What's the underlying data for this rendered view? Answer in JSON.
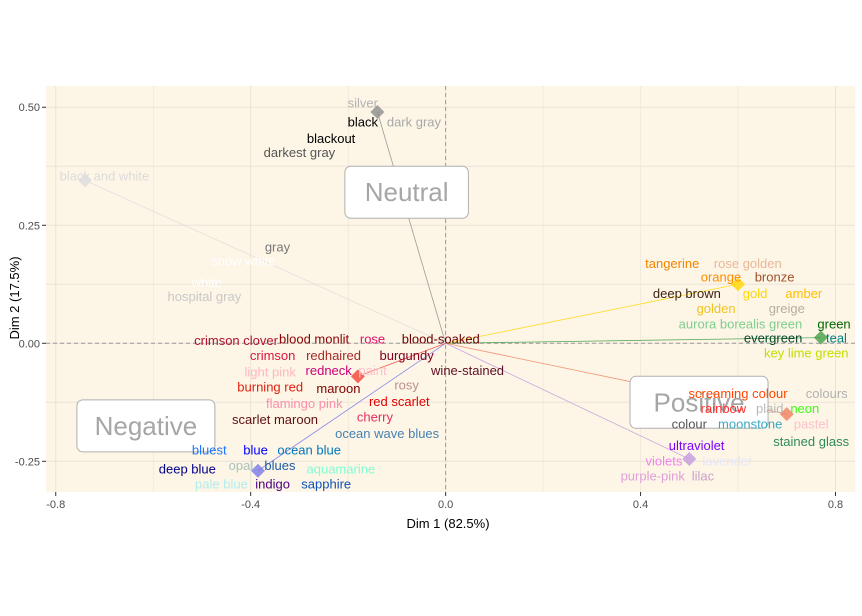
{
  "chart_data": {
    "type": "scatter",
    "xlabel": "Dim 1 (82.5%)",
    "ylabel": "Dim 2 (17.5%)",
    "xlim": [
      -0.82,
      0.84
    ],
    "ylim": [
      -0.315,
      0.545
    ],
    "x_ticks": [
      -0.8,
      -0.4,
      0.0,
      0.4,
      0.8
    ],
    "x_tick_labels": [
      "-0.8",
      "-0.4",
      "0.0",
      "0.4",
      "0.8"
    ],
    "y_ticks": [
      -0.25,
      0.0,
      0.25,
      0.5
    ],
    "y_tick_labels": [
      "-0.25",
      "0.00",
      "0.25",
      "0.50"
    ],
    "grid": true,
    "panel_background": "#fdf5e6",
    "categories": [
      {
        "label": "Neutral",
        "x": -0.08,
        "y": 0.32
      },
      {
        "label": "Negative",
        "x": -0.615,
        "y": -0.175
      },
      {
        "label": "Positive",
        "x": 0.52,
        "y": -0.125
      }
    ],
    "points": [
      {
        "x": -0.14,
        "y": 0.49,
        "color": "#8c8c8c"
      },
      {
        "x": -0.74,
        "y": 0.345,
        "color": "#dddddd"
      },
      {
        "x": 0.6,
        "y": 0.125,
        "color": "#ffd700"
      },
      {
        "x": 0.77,
        "y": 0.012,
        "color": "#43a047"
      },
      {
        "x": 0.7,
        "y": -0.15,
        "color": "#f08060"
      },
      {
        "x": 0.5,
        "y": -0.245,
        "color": "#c39be0"
      },
      {
        "x": -0.18,
        "y": -0.07,
        "color": "#f44336"
      },
      {
        "x": -0.385,
        "y": -0.27,
        "color": "#7878e8"
      }
    ],
    "words": [
      {
        "text": "silver",
        "x": -0.17,
        "y": 0.51,
        "color": "#b3b3b3"
      },
      {
        "text": "black",
        "x": -0.17,
        "y": 0.47,
        "color": "#000000"
      },
      {
        "text": "dark gray",
        "x": -0.065,
        "y": 0.47,
        "color": "#a9a9a9"
      },
      {
        "text": "blackout",
        "x": -0.235,
        "y": 0.435,
        "color": "#000000"
      },
      {
        "text": "darkest gray",
        "x": -0.3,
        "y": 0.405,
        "color": "#555555"
      },
      {
        "text": "black and white",
        "x": -0.7,
        "y": 0.355,
        "color": "#dcdcdc"
      },
      {
        "text": "gray",
        "x": -0.345,
        "y": 0.205,
        "color": "#777777"
      },
      {
        "text": "snow white",
        "x": -0.415,
        "y": 0.175,
        "color": "#ffffff"
      },
      {
        "text": "white",
        "x": -0.49,
        "y": 0.13,
        "color": "#ffffff"
      },
      {
        "text": "hospital gray",
        "x": -0.495,
        "y": 0.1,
        "color": "#c8c8c8"
      },
      {
        "text": "tangerine",
        "x": 0.465,
        "y": 0.17,
        "color": "#f28500"
      },
      {
        "text": "rose golden",
        "x": 0.62,
        "y": 0.17,
        "color": "#e8b898"
      },
      {
        "text": "orange",
        "x": 0.565,
        "y": 0.142,
        "color": "#ff8c00"
      },
      {
        "text": "bronze",
        "x": 0.675,
        "y": 0.142,
        "color": "#a0522d"
      },
      {
        "text": "deep brown",
        "x": 0.495,
        "y": 0.107,
        "color": "#3d2314"
      },
      {
        "text": "gold",
        "x": 0.635,
        "y": 0.107,
        "color": "#ffd700"
      },
      {
        "text": "amber",
        "x": 0.735,
        "y": 0.107,
        "color": "#ffbf00"
      },
      {
        "text": "golden",
        "x": 0.555,
        "y": 0.075,
        "color": "#f0c420"
      },
      {
        "text": "greige",
        "x": 0.7,
        "y": 0.075,
        "color": "#b5ad9e"
      },
      {
        "text": "aurora borealis green",
        "x": 0.605,
        "y": 0.042,
        "color": "#7ecf8e"
      },
      {
        "text": "green",
        "x": 0.797,
        "y": 0.042,
        "color": "#006400"
      },
      {
        "text": "evergreen",
        "x": 0.672,
        "y": 0.012,
        "color": "#05472a"
      },
      {
        "text": "teal",
        "x": 0.802,
        "y": 0.012,
        "color": "#008080"
      },
      {
        "text": "key lime green",
        "x": 0.74,
        "y": -0.02,
        "color": "#c0e000"
      },
      {
        "text": "screaming colour",
        "x": 0.6,
        "y": -0.105,
        "color": "#ff4500"
      },
      {
        "text": "colours",
        "x": 0.782,
        "y": -0.105,
        "color": "#b0b0b0"
      },
      {
        "text": "rainbow",
        "x": 0.57,
        "y": -0.137,
        "color": "#ff3030"
      },
      {
        "text": "plaid",
        "x": 0.665,
        "y": -0.137,
        "color": "#b8b8b8"
      },
      {
        "text": "neon",
        "x": 0.737,
        "y": -0.137,
        "color": "#39ff14"
      },
      {
        "text": "colour",
        "x": 0.5,
        "y": -0.17,
        "color": "#555555"
      },
      {
        "text": "moonstone",
        "x": 0.625,
        "y": -0.17,
        "color": "#3aa8c1"
      },
      {
        "text": "pastel",
        "x": 0.75,
        "y": -0.17,
        "color": "#ffc0cb"
      },
      {
        "text": "stained glass",
        "x": 0.75,
        "y": -0.207,
        "color": "#2e8b57"
      },
      {
        "text": "ultraviolet",
        "x": 0.515,
        "y": -0.215,
        "color": "#7f00ff"
      },
      {
        "text": "violets",
        "x": 0.448,
        "y": -0.248,
        "color": "#ee82ee"
      },
      {
        "text": "lavender",
        "x": 0.578,
        "y": -0.248,
        "color": "#e6e6fa"
      },
      {
        "text": "purple-pink",
        "x": 0.425,
        "y": -0.28,
        "color": "#e0a0d8"
      },
      {
        "text": "lilac",
        "x": 0.528,
        "y": -0.28,
        "color": "#c8a2c8"
      },
      {
        "text": "crimson clover",
        "x": -0.43,
        "y": 0.007,
        "color": "#b01030"
      },
      {
        "text": "blood monlit",
        "x": -0.27,
        "y": 0.01,
        "color": "#8a0303"
      },
      {
        "text": "rose",
        "x": -0.15,
        "y": 0.01,
        "color": "#e0116f"
      },
      {
        "text": "blood-soaked",
        "x": -0.01,
        "y": 0.01,
        "color": "#6b0000"
      },
      {
        "text": "crimson",
        "x": -0.355,
        "y": -0.025,
        "color": "#dc143c"
      },
      {
        "text": "redhaired",
        "x": -0.23,
        "y": -0.025,
        "color": "#a52a2a"
      },
      {
        "text": "burgundy",
        "x": -0.08,
        "y": -0.025,
        "color": "#800020"
      },
      {
        "text": "light pink",
        "x": -0.36,
        "y": -0.06,
        "color": "#ffb6c1"
      },
      {
        "text": "redneck",
        "x": -0.24,
        "y": -0.057,
        "color": "#cc0077"
      },
      {
        "text": "paint",
        "x": -0.15,
        "y": -0.057,
        "color": "#ffc0cb"
      },
      {
        "text": "wine-stained",
        "x": 0.045,
        "y": -0.057,
        "color": "#5e0f24"
      },
      {
        "text": "burning red",
        "x": -0.36,
        "y": -0.092,
        "color": "#e02010"
      },
      {
        "text": "maroon",
        "x": -0.22,
        "y": -0.095,
        "color": "#800000"
      },
      {
        "text": "rosy",
        "x": -0.08,
        "y": -0.087,
        "color": "#bc8f8f"
      },
      {
        "text": "flamingo pink",
        "x": -0.29,
        "y": -0.127,
        "color": "#fc8eac"
      },
      {
        "text": "red scarlet",
        "x": -0.095,
        "y": -0.122,
        "color": "#e00000"
      },
      {
        "text": "scarlet maroon",
        "x": -0.35,
        "y": -0.16,
        "color": "#5e1010"
      },
      {
        "text": "cherry",
        "x": -0.145,
        "y": -0.155,
        "color": "#de3163"
      },
      {
        "text": "ocean wave blues",
        "x": -0.12,
        "y": -0.19,
        "color": "#4682b4"
      },
      {
        "text": "bluest",
        "x": -0.485,
        "y": -0.225,
        "color": "#1f75fe"
      },
      {
        "text": "blue",
        "x": -0.39,
        "y": -0.225,
        "color": "#0000ff"
      },
      {
        "text": "ocean blue",
        "x": -0.28,
        "y": -0.225,
        "color": "#0077be"
      },
      {
        "text": "deep blue",
        "x": -0.53,
        "y": -0.265,
        "color": "#00008b"
      },
      {
        "text": "opal",
        "x": -0.42,
        "y": -0.258,
        "color": "#a8c3bc"
      },
      {
        "text": "blues",
        "x": -0.34,
        "y": -0.258,
        "color": "#1e5aa8"
      },
      {
        "text": "aquamarine",
        "x": -0.215,
        "y": -0.265,
        "color": "#7fffd4"
      },
      {
        "text": "pale blue",
        "x": -0.46,
        "y": -0.297,
        "color": "#afeeee"
      },
      {
        "text": "indigo",
        "x": -0.355,
        "y": -0.297,
        "color": "#4b0082"
      },
      {
        "text": "sapphire",
        "x": -0.245,
        "y": -0.297,
        "color": "#0f52ba"
      }
    ]
  }
}
